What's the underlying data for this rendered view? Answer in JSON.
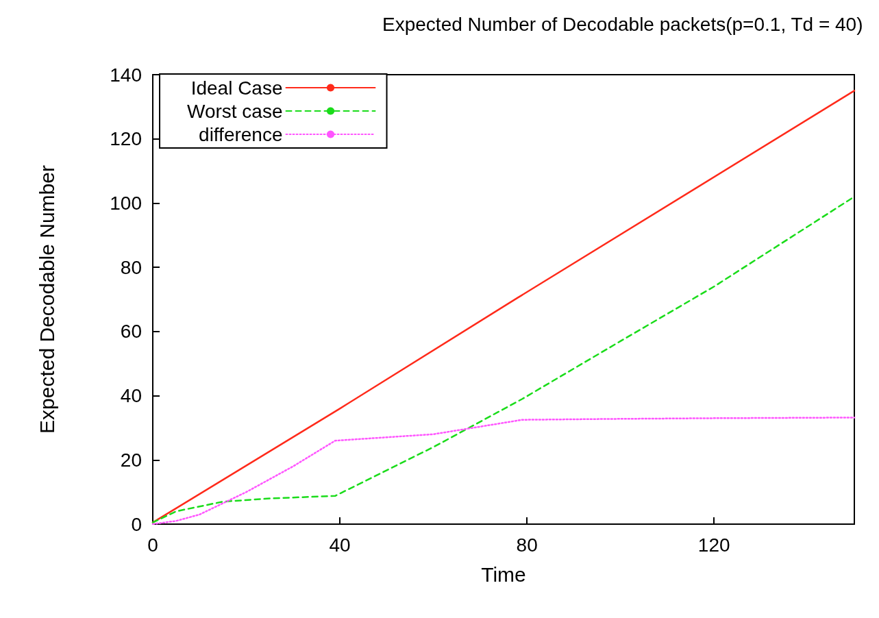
{
  "chart_data": {
    "type": "line",
    "title": "Expected Number of Decodable packets(p=0.1, Td = 40)",
    "xlabel": "Time",
    "ylabel": "Expected Decodable Number",
    "xlim": [
      0,
      150
    ],
    "xticks": [
      0,
      40,
      80,
      120
    ],
    "ylim": [
      0,
      140
    ],
    "yticks": [
      0,
      20,
      40,
      60,
      80,
      100,
      120,
      140
    ],
    "grid": false,
    "legend": "top left",
    "marker": "none",
    "series": [
      {
        "name": "Ideal Case",
        "color": "#ff2a1a",
        "line_style": "solid",
        "x": [
          0,
          40,
          78,
          150
        ],
        "values": [
          0.5,
          36,
          70.5,
          135
        ]
      },
      {
        "name": "Worst case",
        "color": "#1adc1a",
        "line_style": "dashed",
        "x": [
          0,
          5,
          15,
          25,
          39,
          60,
          79,
          100,
          120,
          150
        ],
        "values": [
          0.5,
          4,
          7,
          8,
          8.8,
          24,
          39,
          57,
          74,
          102
        ]
      },
      {
        "name": "difference",
        "color": "#ff55ff",
        "line_style": "dotted",
        "x": [
          0,
          5,
          10,
          20,
          30,
          39,
          60,
          79,
          100,
          120,
          150
        ],
        "values": [
          0,
          1,
          3,
          10,
          18,
          26,
          28,
          32.5,
          32.8,
          33,
          33.2
        ]
      }
    ]
  }
}
